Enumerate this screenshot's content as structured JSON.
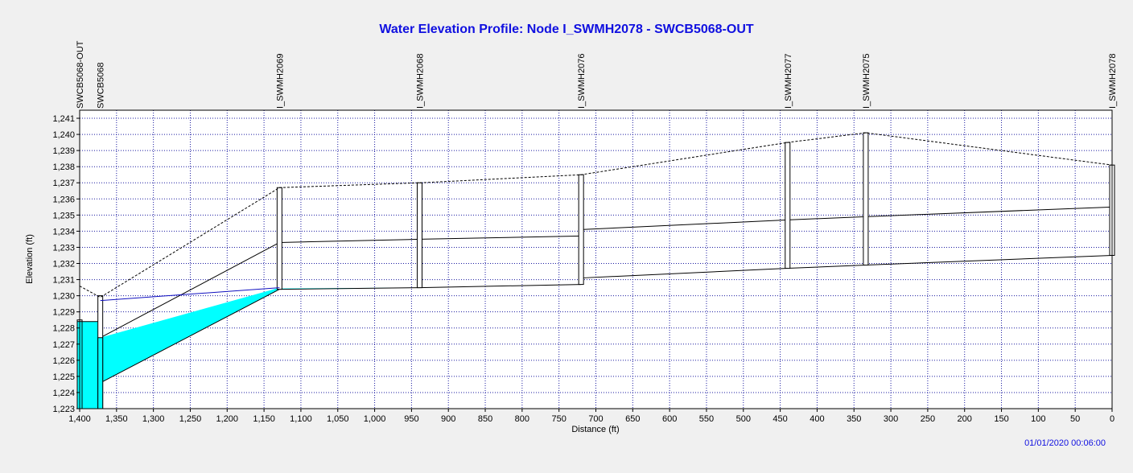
{
  "title": "Water Elevation Profile:  Node I_SWMH2078 - SWCB5068-OUT",
  "timestamp": "01/01/2020 00:06:00",
  "colors": {
    "title": "#1010e0",
    "water": "#00ffff",
    "grid": "#1a1aa0",
    "hgl": "#1010c0"
  },
  "chart_data": {
    "type": "area",
    "title": "Water Elevation Profile:  Node I_SWMH2078 - SWCB5068-OUT",
    "xlabel": "Distance (ft)",
    "ylabel": "Elevation (ft)",
    "xlim": [
      1400,
      0
    ],
    "ylim": [
      1223,
      1241.5
    ],
    "grid": true,
    "x_ticks": [
      1400,
      1350,
      1300,
      1250,
      1200,
      1150,
      1100,
      1050,
      1000,
      950,
      900,
      850,
      800,
      750,
      700,
      650,
      600,
      550,
      500,
      450,
      400,
      350,
      300,
      250,
      200,
      150,
      100,
      50,
      0
    ],
    "y_ticks": [
      1223,
      1224,
      1225,
      1226,
      1227,
      1228,
      1229,
      1230,
      1231,
      1232,
      1233,
      1234,
      1235,
      1236,
      1237,
      1238,
      1239,
      1240,
      1241
    ],
    "nodes": [
      {
        "name": "SWCB5068-OUT",
        "x": 1400,
        "invert": 1223,
        "rim": 1228.5
      },
      {
        "name": "SWCB5068",
        "x": 1372,
        "invert": 1223,
        "rim": 1230
      },
      {
        "name": "I_SWMH2069",
        "x": 1129,
        "invert": 1230.4,
        "rim": 1236.7
      },
      {
        "name": "I_SWMH2068",
        "x": 939,
        "invert": 1230.5,
        "rim": 1237
      },
      {
        "name": "I_SWMH2076",
        "x": 720,
        "invert": 1230.7,
        "rim": 1237.5
      },
      {
        "name": "I_SWMH2077",
        "x": 440,
        "invert": 1231.7,
        "rim": 1239.5
      },
      {
        "name": "I_SWMH2075",
        "x": 334,
        "invert": 1231.9,
        "rim": 1240.1
      },
      {
        "name": "I_SWMH2078",
        "x": 0,
        "invert": 1232.5,
        "rim": 1238.1
      }
    ],
    "conduits": [
      {
        "from": 1400,
        "to": 1372,
        "inv_up": 1223,
        "inv_down": 1223,
        "crown_up": 1228.4,
        "crown_down": 1228.4,
        "water_up": 1228.4,
        "water_down": 1228.4
      },
      {
        "from": 1372,
        "to": 1129,
        "inv_up": 1224.6,
        "inv_down": 1230.4,
        "crown_up": 1227.4,
        "crown_down": 1233.3,
        "water_up": 1227.4,
        "water_down": 1230.5
      },
      {
        "from": 1129,
        "to": 939,
        "inv_up": 1230.4,
        "inv_down": 1230.5,
        "crown_up": 1233.3,
        "crown_down": 1233.5,
        "water_up": 1230.45,
        "water_down": 1230.5
      },
      {
        "from": 939,
        "to": 720,
        "inv_up": 1230.5,
        "inv_down": 1230.7,
        "crown_up": 1233.5,
        "crown_down": 1233.7,
        "water_up": 1230.5,
        "water_down": 1230.7
      },
      {
        "from": 720,
        "to": 440,
        "inv_up": 1231.1,
        "inv_down": 1231.7,
        "crown_up": 1234.1,
        "crown_down": 1234.7,
        "water_up": 1231.1,
        "water_down": 1231.7
      },
      {
        "from": 440,
        "to": 334,
        "inv_up": 1231.7,
        "inv_down": 1231.9,
        "crown_up": 1234.7,
        "crown_down": 1234.9,
        "water_up": 1231.7,
        "water_down": 1231.9
      },
      {
        "from": 334,
        "to": 0,
        "inv_up": 1231.9,
        "inv_down": 1232.5,
        "crown_up": 1234.9,
        "crown_down": 1235.5,
        "water_up": 1231.9,
        "water_down": 1232.5
      }
    ],
    "hgl": [
      {
        "x": 1372,
        "y": 1229.7
      },
      {
        "x": 1129,
        "y": 1230.5
      }
    ],
    "ground_line": [
      {
        "x": 1400,
        "y": 1230.6
      },
      {
        "x": 1372,
        "y": 1229.9
      },
      {
        "x": 1129,
        "y": 1236.7
      },
      {
        "x": 939,
        "y": 1237
      },
      {
        "x": 720,
        "y": 1237.5
      },
      {
        "x": 440,
        "y": 1239.5
      },
      {
        "x": 334,
        "y": 1240.1
      },
      {
        "x": 0,
        "y": 1238.1
      }
    ]
  }
}
